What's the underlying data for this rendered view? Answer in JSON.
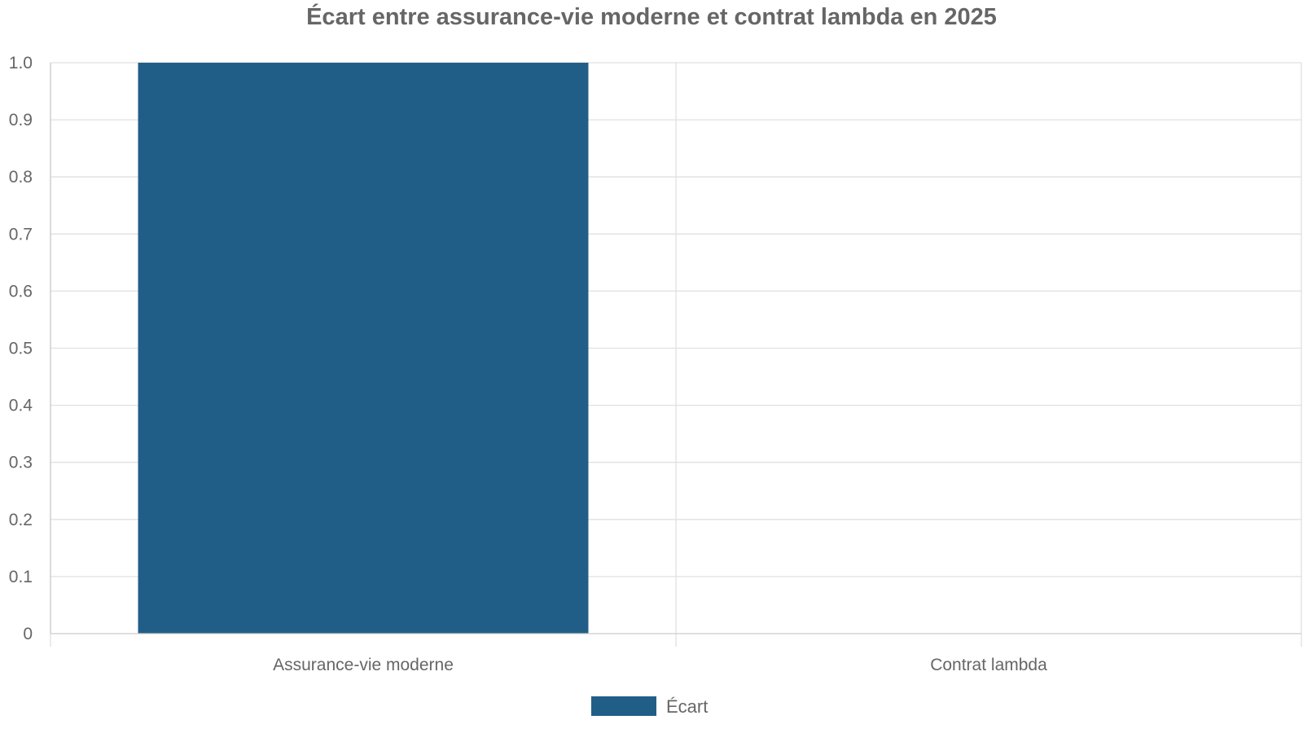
{
  "chart_data": {
    "type": "bar",
    "title": "Écart entre assurance-vie moderne et contrat lambda en 2025",
    "xlabel": "",
    "ylabel": "",
    "categories": [
      "Assurance-vie moderne",
      "Contrat lambda"
    ],
    "series": [
      {
        "name": "Écart",
        "values": [
          1,
          0
        ],
        "color": "#215e87"
      }
    ],
    "ylim": [
      0,
      1
    ],
    "yticks": [
      "0",
      "0.1",
      "0.2",
      "0.3",
      "0.4",
      "0.5",
      "0.6",
      "0.7",
      "0.8",
      "0.9",
      "1.0"
    ],
    "grid": true,
    "legend_position": "bottom-center"
  }
}
